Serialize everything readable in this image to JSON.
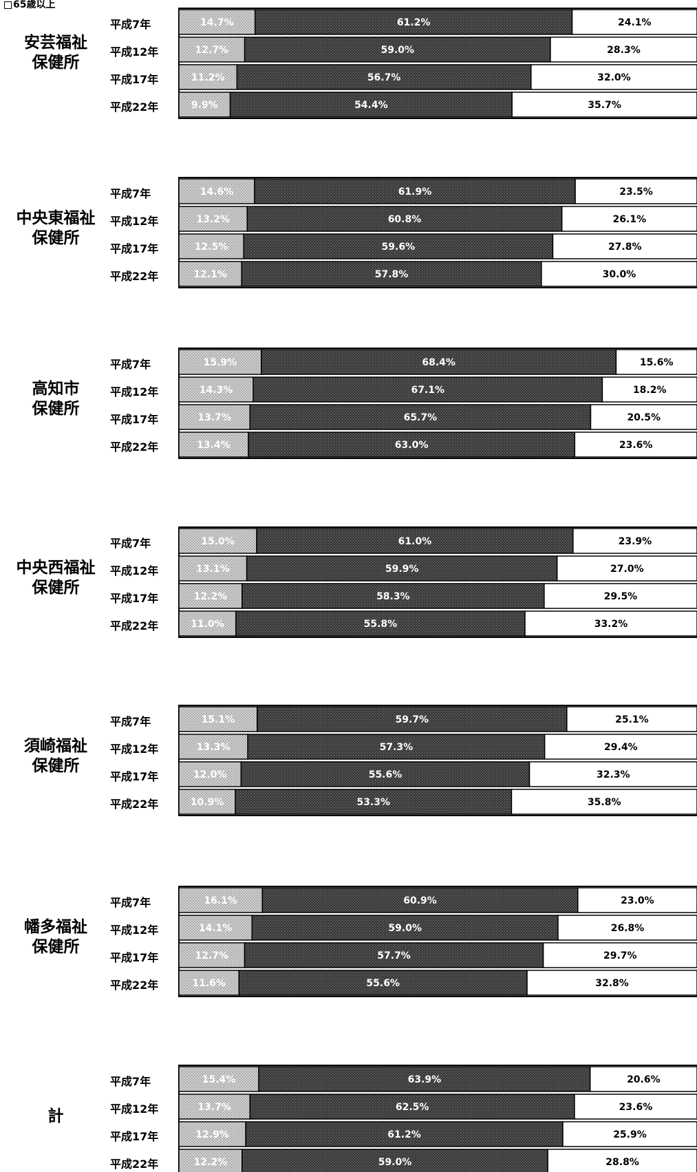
{
  "legend_text": "65歳以上",
  "chart_data": {
    "type": "bar",
    "orientation": "horizontal",
    "stacked": "percent",
    "xlim": [
      0,
      100
    ],
    "series_names": [
      "",
      "",
      "65歳以上"
    ],
    "colors": {
      "young": "#c4c4c4",
      "working": "#3a3a3a",
      "elderly": "#ffffff",
      "border": "#000000"
    },
    "groups": [
      {
        "name": "安芸福祉\n保健所",
        "rows": [
          {
            "year": "平成7年",
            "values": [
              14.7,
              61.2,
              24.1
            ],
            "labels": [
              "14.7%",
              "61.2%",
              "24.1%"
            ]
          },
          {
            "year": "平成12年",
            "values": [
              12.7,
              59.0,
              28.3
            ],
            "labels": [
              "12.7%",
              "59.0%",
              "28.3%"
            ]
          },
          {
            "year": "平成17年",
            "values": [
              11.2,
              56.7,
              32.0
            ],
            "labels": [
              "11.2%",
              "56.7%",
              "32.0%"
            ]
          },
          {
            "year": "平成22年",
            "values": [
              9.9,
              54.4,
              35.7
            ],
            "labels": [
              "9.9%",
              "54.4%",
              "35.7%"
            ]
          }
        ]
      },
      {
        "name": "中央東福祉\n保健所",
        "rows": [
          {
            "year": "平成7年",
            "values": [
              14.6,
              61.9,
              23.5
            ],
            "labels": [
              "14.6%",
              "61.9%",
              "23.5%"
            ]
          },
          {
            "year": "平成12年",
            "values": [
              13.2,
              60.8,
              26.1
            ],
            "labels": [
              "13.2%",
              "60.8%",
              "26.1%"
            ]
          },
          {
            "year": "平成17年",
            "values": [
              12.5,
              59.6,
              27.8
            ],
            "labels": [
              "12.5%",
              "59.6%",
              "27.8%"
            ]
          },
          {
            "year": "平成22年",
            "values": [
              12.1,
              57.8,
              30.0
            ],
            "labels": [
              "12.1%",
              "57.8%",
              "30.0%"
            ]
          }
        ]
      },
      {
        "name": "高知市\n保健所",
        "rows": [
          {
            "year": "平成7年",
            "values": [
              15.9,
              68.4,
              15.6
            ],
            "labels": [
              "15.9%",
              "68.4%",
              "15.6%"
            ]
          },
          {
            "year": "平成12年",
            "values": [
              14.3,
              67.1,
              18.2
            ],
            "labels": [
              "14.3%",
              "67.1%",
              "18.2%"
            ]
          },
          {
            "year": "平成17年",
            "values": [
              13.7,
              65.7,
              20.5
            ],
            "labels": [
              "13.7%",
              "65.7%",
              "20.5%"
            ]
          },
          {
            "year": "平成22年",
            "values": [
              13.4,
              63.0,
              23.6
            ],
            "labels": [
              "13.4%",
              "63.0%",
              "23.6%"
            ]
          }
        ]
      },
      {
        "name": "中央西福祉\n保健所",
        "rows": [
          {
            "year": "平成7年",
            "values": [
              15.0,
              61.0,
              23.9
            ],
            "labels": [
              "15.0%",
              "61.0%",
              "23.9%"
            ]
          },
          {
            "year": "平成12年",
            "values": [
              13.1,
              59.9,
              27.0
            ],
            "labels": [
              "13.1%",
              "59.9%",
              "27.0%"
            ]
          },
          {
            "year": "平成17年",
            "values": [
              12.2,
              58.3,
              29.5
            ],
            "labels": [
              "12.2%",
              "58.3%",
              "29.5%"
            ]
          },
          {
            "year": "平成22年",
            "values": [
              11.0,
              55.8,
              33.2
            ],
            "labels": [
              "11.0%",
              "55.8%",
              "33.2%"
            ]
          }
        ]
      },
      {
        "name": "須崎福祉\n保健所",
        "rows": [
          {
            "year": "平成7年",
            "values": [
              15.1,
              59.7,
              25.1
            ],
            "labels": [
              "15.1%",
              "59.7%",
              "25.1%"
            ]
          },
          {
            "year": "平成12年",
            "values": [
              13.3,
              57.3,
              29.4
            ],
            "labels": [
              "13.3%",
              "57.3%",
              "29.4%"
            ]
          },
          {
            "year": "平成17年",
            "values": [
              12.0,
              55.6,
              32.3
            ],
            "labels": [
              "12.0%",
              "55.6%",
              "32.3%"
            ]
          },
          {
            "year": "平成22年",
            "values": [
              10.9,
              53.3,
              35.8
            ],
            "labels": [
              "10.9%",
              "53.3%",
              "35.8%"
            ]
          }
        ]
      },
      {
        "name": "幡多福祉\n保健所",
        "rows": [
          {
            "year": "平成7年",
            "values": [
              16.1,
              60.9,
              23.0
            ],
            "labels": [
              "16.1%",
              "60.9%",
              "23.0%"
            ]
          },
          {
            "year": "平成12年",
            "values": [
              14.1,
              59.0,
              26.8
            ],
            "labels": [
              "14.1%",
              "59.0%",
              "26.8%"
            ]
          },
          {
            "year": "平成17年",
            "values": [
              12.7,
              57.7,
              29.7
            ],
            "labels": [
              "12.7%",
              "57.7%",
              "29.7%"
            ]
          },
          {
            "year": "平成22年",
            "values": [
              11.6,
              55.6,
              32.8
            ],
            "labels": [
              "11.6%",
              "55.6%",
              "32.8%"
            ]
          }
        ]
      },
      {
        "name": "計",
        "rows": [
          {
            "year": "平成7年",
            "values": [
              15.4,
              63.9,
              20.6
            ],
            "labels": [
              "15.4%",
              "63.9%",
              "20.6%"
            ]
          },
          {
            "year": "平成12年",
            "values": [
              13.7,
              62.5,
              23.6
            ],
            "labels": [
              "13.7%",
              "62.5%",
              "23.6%"
            ]
          },
          {
            "year": "平成17年",
            "values": [
              12.9,
              61.2,
              25.9
            ],
            "labels": [
              "12.9%",
              "61.2%",
              "25.9%"
            ]
          },
          {
            "year": "平成22年",
            "values": [
              12.2,
              59.0,
              28.8
            ],
            "labels": [
              "12.2%",
              "59.0%",
              "28.8%"
            ]
          }
        ]
      }
    ]
  }
}
